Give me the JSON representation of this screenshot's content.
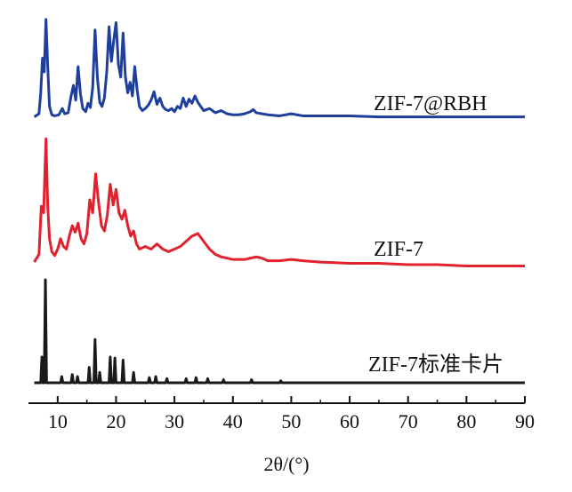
{
  "chart_data": {
    "type": "line",
    "title": "",
    "xlabel": "2θ/(°)",
    "ylabel": "",
    "xlim": [
      5,
      90
    ],
    "xticks": [
      10,
      20,
      30,
      40,
      50,
      60,
      70,
      80,
      90
    ],
    "y_axis_visible": false,
    "grid": false,
    "legend": "inline labels at right of each trace",
    "series": [
      {
        "name": "ZIF-7@RBH",
        "color": "#1f3f9c",
        "baseline": 0.0,
        "x": [
          6.0,
          6.8,
          7.1,
          7.4,
          7.7,
          8.0,
          8.3,
          8.6,
          9.0,
          9.5,
          10.2,
          10.8,
          11.2,
          11.8,
          12.3,
          12.7,
          13.1,
          13.5,
          13.9,
          14.3,
          14.8,
          15.2,
          15.6,
          16.0,
          16.4,
          16.8,
          17.2,
          17.6,
          18.0,
          18.4,
          18.8,
          19.2,
          19.6,
          20.0,
          20.4,
          20.8,
          21.2,
          21.6,
          22.0,
          22.4,
          22.8,
          23.2,
          23.6,
          24.0,
          24.5,
          25.0,
          25.5,
          26.0,
          26.5,
          27.0,
          27.5,
          28.0,
          28.5,
          29.0,
          29.5,
          30.0,
          30.5,
          31.0,
          31.5,
          32.0,
          32.5,
          33.0,
          33.5,
          34.0,
          34.5,
          35.0,
          36.0,
          37.0,
          38.0,
          39.0,
          40.0,
          41.0,
          42.0,
          43.0,
          43.5,
          44.0,
          45.0,
          46.0,
          48.0,
          50.0,
          52.0,
          55.0,
          60.0,
          65.0,
          70.0,
          75.0,
          80.0,
          85.0,
          90.0
        ],
        "y": [
          0.02,
          0.05,
          0.25,
          0.58,
          0.45,
          0.95,
          0.5,
          0.12,
          0.04,
          0.03,
          0.04,
          0.1,
          0.05,
          0.06,
          0.22,
          0.32,
          0.18,
          0.5,
          0.24,
          0.1,
          0.07,
          0.15,
          0.11,
          0.3,
          0.85,
          0.4,
          0.16,
          0.12,
          0.2,
          0.45,
          0.88,
          0.55,
          0.75,
          0.92,
          0.52,
          0.4,
          0.82,
          0.4,
          0.25,
          0.35,
          0.22,
          0.5,
          0.28,
          0.12,
          0.08,
          0.1,
          0.13,
          0.18,
          0.26,
          0.14,
          0.2,
          0.12,
          0.09,
          0.08,
          0.1,
          0.07,
          0.12,
          0.1,
          0.2,
          0.12,
          0.19,
          0.15,
          0.22,
          0.16,
          0.12,
          0.08,
          0.1,
          0.06,
          0.08,
          0.05,
          0.04,
          0.04,
          0.05,
          0.07,
          0.09,
          0.06,
          0.05,
          0.04,
          0.03,
          0.05,
          0.03,
          0.03,
          0.03,
          0.02,
          0.02,
          0.02,
          0.02,
          0.02,
          0.02
        ]
      },
      {
        "name": "ZIF-7",
        "color": "#e0212e",
        "baseline": 0.0,
        "x": [
          6.0,
          6.8,
          7.2,
          7.6,
          8.0,
          8.3,
          8.6,
          9.0,
          9.5,
          10.0,
          10.5,
          11.0,
          11.5,
          12.0,
          12.5,
          13.0,
          13.5,
          14.0,
          14.5,
          15.0,
          15.5,
          16.0,
          16.5,
          17.0,
          17.5,
          18.0,
          18.5,
          19.0,
          19.5,
          20.0,
          20.5,
          21.0,
          21.5,
          22.0,
          22.5,
          23.0,
          23.5,
          24.0,
          25.0,
          26.0,
          27.0,
          28.0,
          29.0,
          30.0,
          31.0,
          32.0,
          33.0,
          34.0,
          35.0,
          36.0,
          37.0,
          38.0,
          39.0,
          40.0,
          42.0,
          44.0,
          45.0,
          46.0,
          48.0,
          50.0,
          52.0,
          55.0,
          60.0,
          65.0,
          70.0,
          75.0,
          80.0,
          85.0,
          90.0
        ],
        "y": [
          0.02,
          0.08,
          0.45,
          0.4,
          0.97,
          0.45,
          0.2,
          0.1,
          0.07,
          0.12,
          0.2,
          0.14,
          0.12,
          0.22,
          0.3,
          0.25,
          0.32,
          0.2,
          0.16,
          0.24,
          0.5,
          0.4,
          0.7,
          0.48,
          0.3,
          0.26,
          0.38,
          0.62,
          0.46,
          0.58,
          0.4,
          0.35,
          0.42,
          0.3,
          0.22,
          0.26,
          0.16,
          0.12,
          0.14,
          0.12,
          0.16,
          0.12,
          0.1,
          0.12,
          0.14,
          0.18,
          0.22,
          0.24,
          0.18,
          0.12,
          0.08,
          0.06,
          0.05,
          0.04,
          0.04,
          0.06,
          0.05,
          0.03,
          0.03,
          0.04,
          0.03,
          0.02,
          0.01,
          0.01,
          0.0,
          0.0,
          -0.01,
          -0.01,
          -0.01
        ]
      },
      {
        "name": "ZIF-7标准卡片",
        "color": "#1a1a1a",
        "baseline": 0.0,
        "x": [
          6.0,
          7.1,
          7.3,
          7.5,
          7.7,
          7.9,
          8.1,
          8.3,
          9.0,
          10.5,
          10.7,
          10.9,
          12.3,
          12.5,
          12.7,
          13.2,
          13.4,
          13.6,
          15.2,
          15.4,
          15.6,
          16.2,
          16.4,
          16.6,
          17.0,
          17.2,
          17.4,
          18.8,
          19.0,
          19.2,
          19.6,
          19.8,
          20.0,
          21.0,
          21.2,
          21.4,
          22.8,
          23.0,
          23.2,
          25.5,
          25.7,
          25.9,
          26.6,
          26.8,
          27.0,
          28.5,
          28.7,
          28.9,
          30.0,
          31.8,
          32.0,
          32.2,
          33.5,
          33.7,
          33.9,
          35.5,
          35.7,
          35.9,
          38.2,
          38.4,
          38.6,
          40.0,
          43.0,
          43.2,
          43.4,
          45.0,
          48.0,
          48.2,
          48.4,
          50.0,
          55.0,
          60.0,
          70.0,
          80.0,
          90.0
        ],
        "y": [
          0.0,
          0.0,
          0.25,
          0.0,
          0.0,
          1.0,
          0.0,
          0.0,
          0.0,
          0.0,
          0.06,
          0.0,
          0.0,
          0.08,
          0.0,
          0.0,
          0.06,
          0.0,
          0.0,
          0.15,
          0.0,
          0.0,
          0.42,
          0.0,
          0.0,
          0.1,
          0.0,
          0.0,
          0.25,
          0.0,
          0.0,
          0.24,
          0.0,
          0.0,
          0.22,
          0.0,
          0.0,
          0.1,
          0.0,
          0.0,
          0.05,
          0.0,
          0.0,
          0.06,
          0.0,
          0.0,
          0.04,
          0.0,
          0.0,
          0.0,
          0.04,
          0.0,
          0.0,
          0.05,
          0.0,
          0.0,
          0.04,
          0.0,
          0.0,
          0.03,
          0.0,
          0.0,
          0.0,
          0.03,
          0.0,
          0.0,
          0.0,
          0.02,
          0.0,
          0.0,
          0.0,
          0.0,
          0.0,
          0.0,
          0.0
        ]
      }
    ]
  }
}
